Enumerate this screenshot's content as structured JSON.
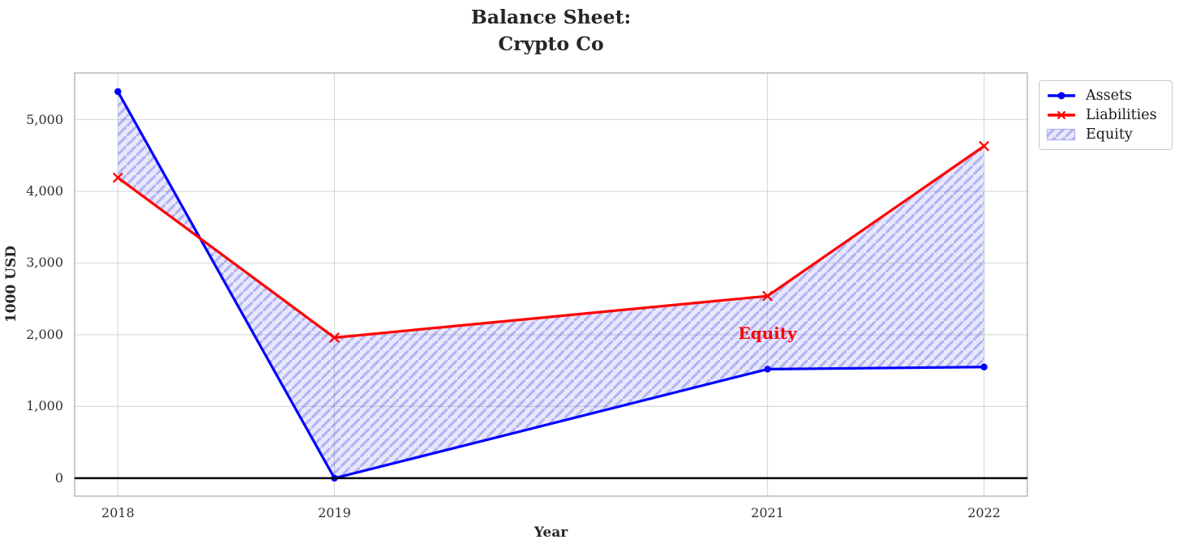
{
  "title": {
    "line1": "Balance Sheet:",
    "line2": "Crypto Co"
  },
  "chart_data": {
    "type": "line",
    "title": "Balance Sheet: Crypto Co",
    "xlabel": "Year",
    "ylabel": "1000 USD",
    "x": [
      2018,
      2019,
      2021,
      2022
    ],
    "series": [
      {
        "name": "Assets",
        "color": "#0000ff",
        "marker": "circle",
        "values": [
          5390,
          0,
          1520,
          1550
        ]
      },
      {
        "name": "Liabilities",
        "color": "#ff0000",
        "marker": "x",
        "values": [
          4190,
          1960,
          2540,
          4630
        ]
      }
    ],
    "equity_fill": {
      "label": "Equity",
      "between": [
        "Assets",
        "Liabilities"
      ],
      "base_color": "rgba(100,100,235,0.15)",
      "hatch_color": "rgba(100,100,235,0.40)",
      "hatch": "//"
    },
    "annotation": {
      "text": "Equity",
      "color": "#ff0000",
      "x": 2021,
      "y": 2025
    },
    "xlim": [
      2017.8,
      2022.2
    ],
    "ylim": [
      -250,
      5650
    ],
    "xticks": {
      "values": [
        2018,
        2019,
        2021,
        2022
      ],
      "labels": [
        "2018",
        "2019",
        "2021",
        "2022"
      ]
    },
    "yticks": {
      "values": [
        0,
        1000,
        2000,
        3000,
        4000,
        5000
      ],
      "labels": [
        "0",
        "1,000",
        "2,000",
        "3,000",
        "4,000",
        "5,000"
      ]
    },
    "grid": true,
    "grid_color": "#d9d9d9",
    "border_color": "#b5b5b5",
    "zero_line_color": "#000000",
    "legend": {
      "position": "upper right outside",
      "items": [
        {
          "label": "Assets"
        },
        {
          "label": "Liabilities"
        },
        {
          "label": "Equity"
        }
      ]
    }
  }
}
